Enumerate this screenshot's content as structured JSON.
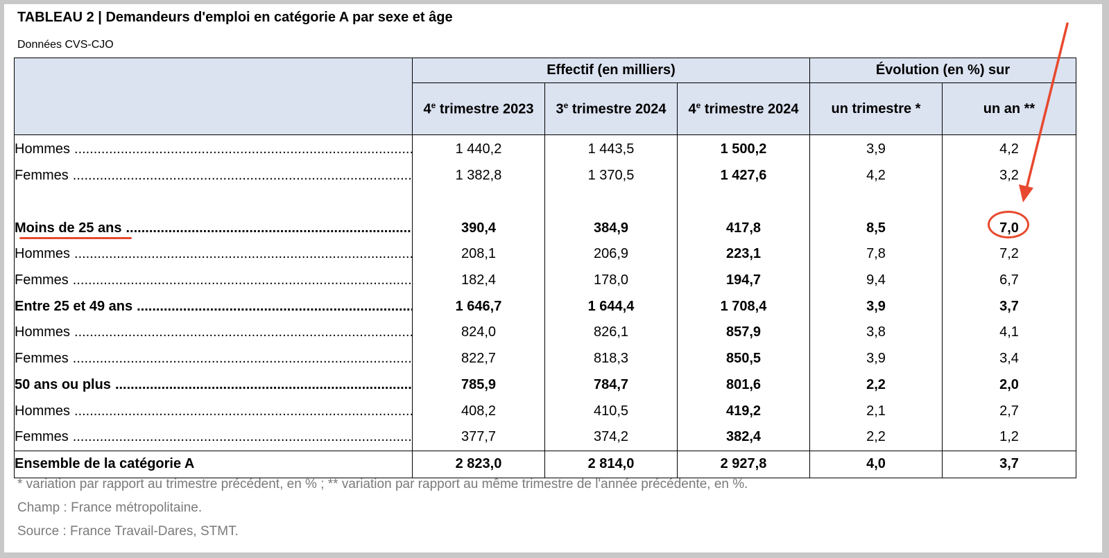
{
  "title": "TABLEAU 2 | Demandeurs d'emploi en catégorie A par sexe et âge",
  "subtitle": "Données CVS-CJO",
  "header": {
    "group_effectif": "Effectif (en milliers)",
    "group_evolution": "Évolution (en %) sur",
    "col1_num": "4",
    "col1_rest": " trimestre 2023",
    "col2_num": "3",
    "col2_rest": " trimestre 2024",
    "col3_num": "4",
    "col3_rest": " trimestre 2024",
    "ordinal_suffix": "e",
    "col4": "un trimestre *",
    "col5": "un an **"
  },
  "rows": [
    {
      "label": "Hommes",
      "v": [
        "1 440,2",
        "1 443,5",
        "1 500,2",
        "3,9",
        "4,2"
      ]
    },
    {
      "label": "Femmes",
      "v": [
        "1 382,8",
        "1 370,5",
        "1 427,6",
        "4,2",
        "3,2"
      ]
    },
    {
      "label": "Moins de 25 ans",
      "v": [
        "390,4",
        "384,9",
        "417,8",
        "8,5",
        "7,0"
      ]
    },
    {
      "label": "Hommes",
      "v": [
        "208,1",
        "206,9",
        "223,1",
        "7,8",
        "7,2"
      ]
    },
    {
      "label": "Femmes",
      "v": [
        "182,4",
        "178,0",
        "194,7",
        "9,4",
        "6,7"
      ]
    },
    {
      "label": "Entre 25 et 49 ans",
      "v": [
        "1 646,7",
        "1 644,4",
        "1 708,4",
        "3,9",
        "3,7"
      ]
    },
    {
      "label": "Hommes",
      "v": [
        "824,0",
        "826,1",
        "857,9",
        "3,8",
        "4,1"
      ]
    },
    {
      "label": "Femmes",
      "v": [
        "822,7",
        "818,3",
        "850,5",
        "3,9",
        "3,4"
      ]
    },
    {
      "label": "50 ans ou plus",
      "v": [
        "785,9",
        "784,7",
        "801,6",
        "2,2",
        "2,0"
      ]
    },
    {
      "label": "Hommes",
      "v": [
        "408,2",
        "410,5",
        "419,2",
        "2,1",
        "2,7"
      ]
    },
    {
      "label": "Femmes",
      "v": [
        "377,7",
        "374,2",
        "382,4",
        "2,2",
        "1,2"
      ]
    }
  ],
  "total": {
    "label": "Ensemble de la catégorie A",
    "v": [
      "2 823,0",
      "2 814,0",
      "2 927,8",
      "4,0",
      "3,7"
    ]
  },
  "notes": {
    "note1": "* variation par rapport au trimestre précédent, en % ; ** variation par rapport au même trimestre de l'année précédente, en %.",
    "note2": "Champ : France métropolitaine.",
    "note3": "Source : France Travail-Dares, STMT."
  },
  "colors": {
    "annotation": "#e8482d",
    "header_bg": "#dbe2f0"
  }
}
